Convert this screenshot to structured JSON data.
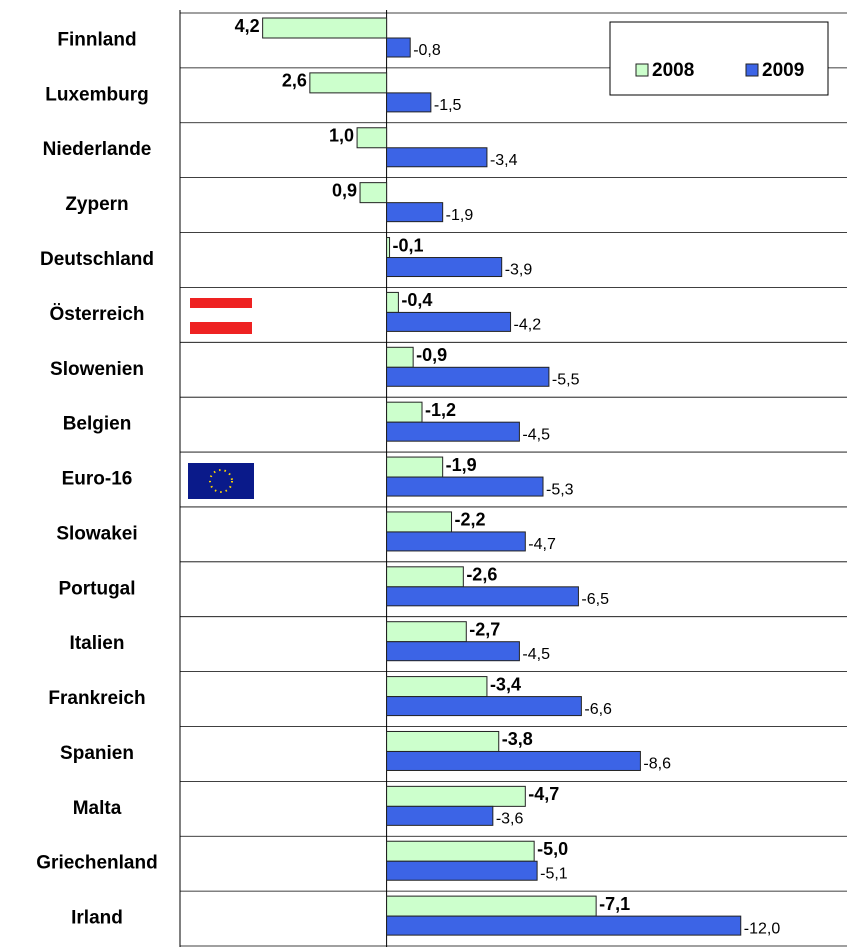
{
  "chart_data": {
    "type": "bar",
    "orientation": "horizontal",
    "categories": [
      "Finnland",
      "Luxemburg",
      "Niederlande",
      "Zypern",
      "Deutschland",
      "Österreich",
      "Slowenien",
      "Belgien",
      "Euro-16",
      "Slowakei",
      "Portugal",
      "Italien",
      "Frankreich",
      "Spanien",
      "Malta",
      "Griechenland",
      "Irland"
    ],
    "series": [
      {
        "name": "2008",
        "color": "#ccffcc",
        "values": [
          4.2,
          2.6,
          1.0,
          0.9,
          -0.1,
          -0.4,
          -0.9,
          -1.2,
          -1.9,
          -2.2,
          -2.6,
          -2.7,
          -3.4,
          -3.8,
          -4.7,
          -5.0,
          -7.1
        ],
        "value_labels": [
          "4,2",
          "2,6",
          "1,0",
          "0,9",
          "-0,1",
          "-0,4",
          "-0,9",
          "-1,2",
          "-1,9",
          "-2,2",
          "-2,6",
          "-2,7",
          "-3,4",
          "-3,8",
          "-4,7",
          "-5,0",
          "-7,1"
        ]
      },
      {
        "name": "2009",
        "color": "#3c64e6",
        "values": [
          -0.8,
          -1.5,
          -3.4,
          -1.9,
          -3.9,
          -4.2,
          -5.5,
          -4.5,
          -5.3,
          -4.7,
          -6.5,
          -4.5,
          -6.6,
          -8.6,
          -3.6,
          -5.1,
          -12.0
        ],
        "value_labels": [
          "-0,8",
          "-1,5",
          "-3,4",
          "-1,9",
          "-3,9",
          "-4,2",
          "-5,5",
          "-4,5",
          "-5,3",
          "-4,7",
          "-6,5",
          "-4,5",
          "-6,6",
          "-8,6",
          "-3,6",
          "-5,1",
          "-12,0"
        ]
      }
    ],
    "xlim": [
      7,
      -15.6
    ],
    "legend": "top-right"
  }
}
